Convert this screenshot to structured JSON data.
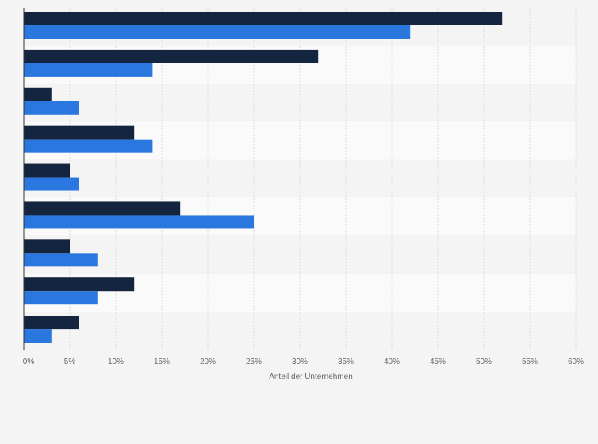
{
  "chart_data": {
    "type": "bar",
    "orientation": "horizontal",
    "title": "",
    "xlabel": "Anteil der Unternehmen",
    "ylabel": "",
    "xlim": [
      0,
      60
    ],
    "x_ticks": [
      "0%",
      "5%",
      "10%",
      "15%",
      "20%",
      "25%",
      "30%",
      "35%",
      "40%",
      "45%",
      "50%",
      "55%",
      "60%"
    ],
    "tick_suffix": "%",
    "categories": [
      "",
      "",
      "",
      "",
      "",
      "",
      "",
      "",
      ""
    ],
    "series": [
      {
        "color": "#14253f",
        "values": [
          52,
          32,
          3,
          12,
          5,
          17,
          5,
          12,
          6
        ]
      },
      {
        "color": "#2a77e0",
        "values": [
          42,
          14,
          6,
          14,
          6,
          25,
          8,
          8,
          3
        ]
      }
    ],
    "grid": true,
    "legend": "none"
  }
}
